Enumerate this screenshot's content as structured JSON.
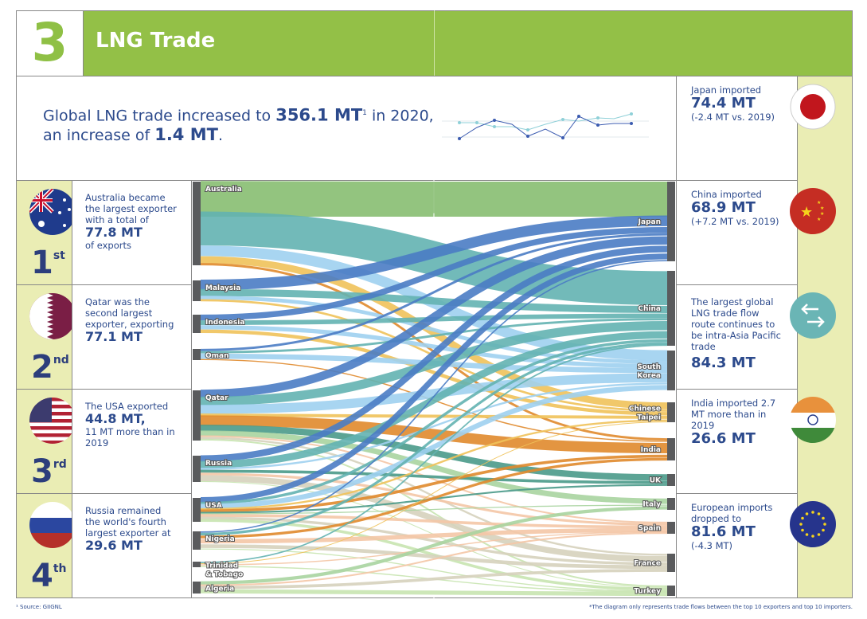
{
  "header": {
    "number": "3",
    "title": "LNG Trade"
  },
  "intro": {
    "pre": "Global LNG trade increased to ",
    "value": "356.1 MT",
    "sup": "1",
    "mid": " in 2020,",
    "line2_pre": "an increase of ",
    "value2": "1.4 MT",
    "end": "."
  },
  "ranks": [
    {
      "flag": "australia-flag",
      "text_pre": "Australia became the largest exporter with a total of",
      "value": "77.8 MT",
      "text_post": "of exports",
      "rank": "1",
      "suffix": "st"
    },
    {
      "flag": "qatar-flag",
      "text_pre": "Qatar was the second largest exporter, exporting",
      "value": "77.1 MT",
      "text_post": "",
      "rank": "2",
      "suffix": "nd"
    },
    {
      "flag": "usa-flag",
      "text_pre": "The USA exported",
      "value": "44.8 MT,",
      "text_post": "11 MT more than in 2019",
      "rank": "3",
      "suffix": "rd"
    },
    {
      "flag": "russia-flag",
      "text_pre": "Russia remained the world's fourth largest exporter at",
      "value": "29.6 MT",
      "text_post": "",
      "rank": "4",
      "suffix": "th"
    }
  ],
  "right_panels": [
    {
      "icon": "japan-flag",
      "pre": "Japan imported",
      "value": "74.4 MT",
      "post": "(-2.4 MT vs. 2019)"
    },
    {
      "icon": "china-flag",
      "pre": "China imported",
      "value": "68.9 MT",
      "post": "(+7.2 MT vs. 2019)"
    },
    {
      "icon": "exchange-arrows-icon",
      "pre": "The largest global LNG trade flow route continues to be intra-Asia Pacific trade",
      "value": "84.3 MT",
      "post": ""
    },
    {
      "icon": "india-flag",
      "pre": "India imported 2.7 MT more than in 2019",
      "value": "26.6 MT",
      "post": ""
    },
    {
      "icon": "eu-flag",
      "pre": "European imports dropped to",
      "value": "81.6 MT",
      "post": "(-4.3 MT)"
    }
  ],
  "footnote_left": "¹ Source: GIIGNL",
  "footnote_right": "*The diagram only represents trade flows between the top 10 exporters and top 10 importers.",
  "chart_data": {
    "type": "sankey",
    "exporters": [
      "Australia",
      "Malaysia",
      "Indonesia",
      "Oman",
      "Qatar",
      "Russia",
      "USA",
      "Nigeria",
      "Trinidad & Tobago",
      "Algeria"
    ],
    "importers": [
      "Japan",
      "China",
      "South Korea",
      "Chinese Taipei",
      "India",
      "UK",
      "Italy",
      "Spain",
      "France",
      "Turkey"
    ],
    "importer_colors": {
      "Japan": "#4a7cc4",
      "China": "#63b3b1",
      "South Korea": "#9fd0f0",
      "Chinese Taipei": "#f0c25a",
      "India": "#e0892c",
      "UK": "#4a9a8a",
      "Italy": "#a8d4a0",
      "Spain": "#f4c6a6",
      "France": "#d6d2bd",
      "Turkey": "#c8e4b0"
    },
    "flows": [
      [
        "Australia",
        "Japan",
        27
      ],
      [
        "Australia",
        "China",
        30
      ],
      [
        "Australia",
        "South Korea",
        10
      ],
      [
        "Australia",
        "Chinese Taipei",
        6
      ],
      [
        "Australia",
        "India",
        2
      ],
      [
        "Malaysia",
        "Japan",
        10
      ],
      [
        "Malaysia",
        "China",
        7
      ],
      [
        "Malaysia",
        "South Korea",
        4
      ],
      [
        "Malaysia",
        "Chinese Taipei",
        2
      ],
      [
        "Indonesia",
        "Japan",
        5
      ],
      [
        "Indonesia",
        "China",
        4
      ],
      [
        "Indonesia",
        "South Korea",
        4
      ],
      [
        "Indonesia",
        "Chinese Taipei",
        3
      ],
      [
        "Oman",
        "Japan",
        2
      ],
      [
        "Oman",
        "China",
        2
      ],
      [
        "Oman",
        "South Korea",
        5
      ],
      [
        "Oman",
        "India",
        1
      ],
      [
        "Qatar",
        "Japan",
        8
      ],
      [
        "Qatar",
        "China",
        9
      ],
      [
        "Qatar",
        "South Korea",
        10
      ],
      [
        "Qatar",
        "Chinese Taipei",
        3
      ],
      [
        "Qatar",
        "India",
        10
      ],
      [
        "Qatar",
        "UK",
        7
      ],
      [
        "Qatar",
        "Italy",
        5
      ],
      [
        "Qatar",
        "Spain",
        2
      ],
      [
        "Qatar",
        "France",
        2
      ],
      [
        "Qatar",
        "Turkey",
        2
      ],
      [
        "Russia",
        "Japan",
        6
      ],
      [
        "Russia",
        "China",
        7
      ],
      [
        "Russia",
        "South Korea",
        2
      ],
      [
        "Russia",
        "UK",
        3
      ],
      [
        "Russia",
        "Spain",
        3
      ],
      [
        "Russia",
        "France",
        6
      ],
      [
        "Russia",
        "Turkey",
        1
      ],
      [
        "USA",
        "Japan",
        6
      ],
      [
        "USA",
        "China",
        3
      ],
      [
        "USA",
        "South Korea",
        6
      ],
      [
        "USA",
        "Chinese Taipei",
        2
      ],
      [
        "USA",
        "India",
        3
      ],
      [
        "USA",
        "UK",
        2
      ],
      [
        "USA",
        "Italy",
        1
      ],
      [
        "USA",
        "Spain",
        4
      ],
      [
        "USA",
        "France",
        3
      ],
      [
        "USA",
        "Turkey",
        4
      ],
      [
        "Nigeria",
        "Japan",
        1
      ],
      [
        "Nigeria",
        "China",
        2
      ],
      [
        "Nigeria",
        "India",
        2
      ],
      [
        "Nigeria",
        "Spain",
        4
      ],
      [
        "Nigeria",
        "France",
        3
      ],
      [
        "Nigeria",
        "Turkey",
        1
      ],
      [
        "Trinidad & Tobago",
        "China",
        1
      ],
      [
        "Trinidad & Tobago",
        "Chinese Taipei",
        0.5
      ],
      [
        "Trinidad & Tobago",
        "Spain",
        1
      ],
      [
        "Trinidad & Tobago",
        "Turkey",
        1
      ],
      [
        "Algeria",
        "Italy",
        3
      ],
      [
        "Algeria",
        "Spain",
        2
      ],
      [
        "Algeria",
        "France",
        3
      ],
      [
        "Algeria",
        "Turkey",
        5
      ]
    ]
  }
}
